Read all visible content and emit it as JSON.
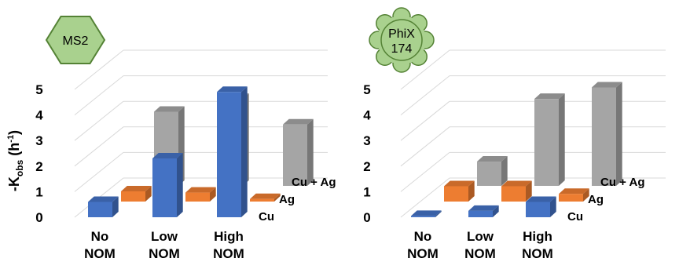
{
  "colors": {
    "Cu": "#4472C4",
    "Ag": "#ED7D31",
    "Cu + Ag": "#A5A5A5",
    "badge_fill": "#A9D18E",
    "badge_stroke": "#548235"
  },
  "chart_data": [
    {
      "type": "bar",
      "badge": "MS2",
      "badge_shape": "hexagon",
      "ylabel_main": "-K",
      "ylabel_sub": "obs",
      "ylabel_unit": "(h",
      "ylabel_sup": "-1",
      "ylabel_close": ")",
      "ylim": [
        0,
        5
      ],
      "yticks": [
        "0",
        "1",
        "2",
        "3",
        "4",
        "5"
      ],
      "categories": [
        [
          "No",
          "NOM"
        ],
        [
          "Low",
          "NOM"
        ],
        [
          "High",
          "NOM"
        ]
      ],
      "depth_labels": [
        "Cu",
        "Ag",
        "Cu + Ag"
      ],
      "series": [
        {
          "name": "Cu",
          "values": [
            0.6,
            2.3,
            4.9
          ]
        },
        {
          "name": "Ag",
          "values": [
            0.4,
            0.35,
            0.1
          ]
        },
        {
          "name": "Cu + Ag",
          "values": [
            2.9,
            3.4,
            2.4
          ]
        }
      ]
    },
    {
      "type": "bar",
      "badge": [
        "PhiX",
        "174"
      ],
      "badge_shape": "scalloped",
      "ylim": [
        0,
        5
      ],
      "yticks": [
        "0",
        "1",
        "2",
        "3",
        "4",
        "5"
      ],
      "categories": [
        [
          "No",
          "NOM"
        ],
        [
          "Low",
          "NOM"
        ],
        [
          "High",
          "NOM"
        ]
      ],
      "depth_labels": [
        "Cu",
        "Ag",
        "Cu + Ag"
      ],
      "series": [
        {
          "name": "Cu",
          "values": [
            0.05,
            0.25,
            0.6
          ]
        },
        {
          "name": "Ag",
          "values": [
            0.6,
            0.6,
            0.3
          ]
        },
        {
          "name": "Cu + Ag",
          "values": [
            0.95,
            3.4,
            3.85
          ]
        }
      ]
    }
  ]
}
